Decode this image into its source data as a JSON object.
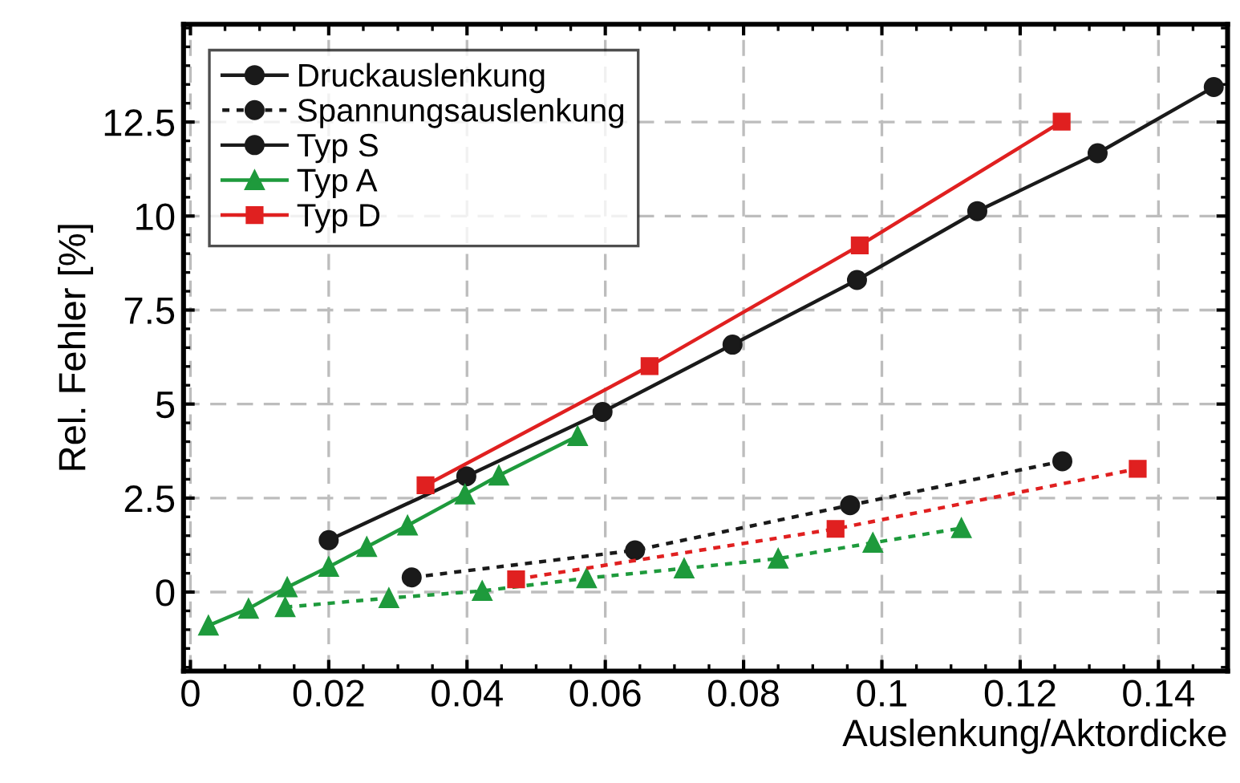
{
  "chart_data": {
    "type": "line",
    "xlabel": "Auslenkung/Aktordicke",
    "ylabel": "Rel. Fehler [%]",
    "xlim": [
      -0.001,
      0.15
    ],
    "ylim": [
      -2.1,
      15.1
    ],
    "xticks": [
      0,
      0.02,
      0.04,
      0.06,
      0.08,
      0.1,
      0.12,
      0.14
    ],
    "yticks": [
      0,
      2.5,
      5,
      7.5,
      10,
      12.5
    ],
    "grid": true,
    "legend": "top left",
    "series": [
      {
        "name": "Druckauslenkung",
        "color": "#1a1a1a",
        "marker": "circle",
        "line_style": "solid"
      },
      {
        "name": "Spannungsauslenkung",
        "color": "#1a1a1a",
        "marker": "circle",
        "line_style": "dotted"
      },
      {
        "name": "Typ S",
        "color": "#1a1a1a",
        "marker": "circle",
        "line_style": "solid",
        "x": [
          0.02,
          0.0399,
          0.0596,
          0.0784,
          0.0964,
          0.1138,
          0.1312,
          0.148
        ],
        "values": [
          1.38,
          3.08,
          4.79,
          6.58,
          8.3,
          10.13,
          11.67,
          13.43
        ]
      },
      {
        "name": "Typ A",
        "color": "#1e9a3c",
        "marker": "triangle",
        "line_style": "solid",
        "x": [
          0.0026,
          0.0084,
          0.014,
          0.02,
          0.0255,
          0.0314,
          0.0397,
          0.0446,
          0.056
        ],
        "values": [
          -0.89,
          -0.44,
          0.13,
          0.67,
          1.2,
          1.77,
          2.6,
          3.1,
          4.15
        ]
      },
      {
        "name": "Typ D",
        "color": "#e02020",
        "marker": "square",
        "line_style": "solid",
        "x": [
          0.034,
          0.0664,
          0.0968,
          0.126
        ],
        "values": [
          2.84,
          6.01,
          9.22,
          12.51
        ]
      },
      {
        "color": "#1a1a1a",
        "marker": "circle",
        "line_style": "dotted",
        "x": [
          0.032,
          0.0643,
          0.0954,
          0.1261
        ],
        "values": [
          0.39,
          1.11,
          2.31,
          3.48
        ]
      },
      {
        "color": "#1e9a3c",
        "marker": "triangle",
        "line_style": "dotted",
        "x": [
          0.0137,
          0.0287,
          0.0422,
          0.0573,
          0.0714,
          0.085,
          0.0987,
          0.1115
        ],
        "values": [
          -0.4,
          -0.16,
          0.03,
          0.37,
          0.63,
          0.89,
          1.31,
          1.7
        ]
      },
      {
        "color": "#e02020",
        "marker": "square",
        "line_style": "dotted",
        "x": [
          0.0471,
          0.0933,
          0.137
        ],
        "values": [
          0.34,
          1.68,
          3.28
        ]
      }
    ]
  }
}
